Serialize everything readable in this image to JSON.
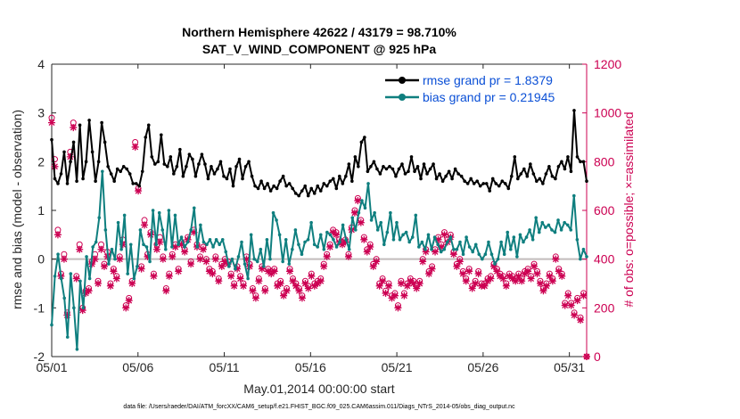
{
  "chart_data": {
    "type": "line",
    "title": "Northern Hemisphere 42622 / 43179 = 98.710%",
    "subtitle": "SAT_V_WIND_COMPONENT @ 925 hPa",
    "xlabel": "May.01,2014 00:00:00 start",
    "ylabel": "rmse and bias (model - observation)",
    "y2label": "# of obs: o=possible; ×=assimilated",
    "xlim": [
      0,
      31
    ],
    "ylim": [
      -2,
      4
    ],
    "y2lim": [
      0,
      1200
    ],
    "x_ticks": [
      0,
      5,
      10,
      15,
      20,
      25,
      30
    ],
    "x_tick_labels": [
      "05/01",
      "05/06",
      "05/11",
      "05/16",
      "05/21",
      "05/26",
      "05/31"
    ],
    "y_ticks": [
      -2,
      -1,
      0,
      1,
      2,
      3,
      4
    ],
    "y_tick_labels": [
      "-2",
      "-1",
      "0",
      "1",
      "2",
      "3",
      "4"
    ],
    "y2_ticks": [
      0,
      200,
      400,
      600,
      800,
      1000,
      1200
    ],
    "y2_tick_labels": [
      "0",
      "200",
      "400",
      "600",
      "800",
      "1000",
      "1200"
    ],
    "legend_position": "top-right",
    "footnote": "data file: /Users/raeder/DAI/ATM_forcXX/CAM6_setup/f.e21.FHIST_BGC.f09_025.CAM6assim.011/Diags_NTrS_2014-05/obs_diag_output.nc",
    "series": [
      {
        "name": "rmse grand pr = 1.8379",
        "color": "#000000",
        "axis": "left",
        "values": [
          2.45,
          1.65,
          1.55,
          1.75,
          2.2,
          1.55,
          2.0,
          2.4,
          1.6,
          2.75,
          1.65,
          2.0,
          2.85,
          2.2,
          1.6,
          2.0,
          2.8,
          2.4,
          1.9,
          1.75,
          1.6,
          1.85,
          1.8,
          1.9,
          1.85,
          1.75,
          1.55,
          1.55,
          1.5,
          1.8,
          2.5,
          2.75,
          2.1,
          1.95,
          2.0,
          2.55,
          1.95,
          1.9,
          2.1,
          1.75,
          1.9,
          2.25,
          1.7,
          1.9,
          2.15,
          2.05,
          1.7,
          1.95,
          2.15,
          1.95,
          1.65,
          1.9,
          1.75,
          1.85,
          2.0,
          1.7,
          1.65,
          1.85,
          1.5,
          1.9,
          2.05,
          1.65,
          1.9,
          2.0,
          1.7,
          1.5,
          1.45,
          1.6,
          1.45,
          1.55,
          1.4,
          1.5,
          1.45,
          1.6,
          1.7,
          1.5,
          1.55,
          1.45,
          1.35,
          1.3,
          1.4,
          1.5,
          1.3,
          1.45,
          1.35,
          1.5,
          1.4,
          1.55,
          1.5,
          1.6,
          1.65,
          1.45,
          1.7,
          1.55,
          1.7,
          1.95,
          1.6,
          2.1,
          1.9,
          2.4,
          2.5,
          1.8,
          1.9,
          2.0,
          1.85,
          1.75,
          1.9,
          1.85,
          1.9,
          1.85,
          1.7,
          1.85,
          1.95,
          1.75,
          1.8,
          2.1,
          1.8,
          1.9,
          1.65,
          1.95,
          1.75,
          1.85,
          1.95,
          1.65,
          1.75,
          1.6,
          1.7,
          1.8,
          1.65,
          1.85,
          1.75,
          1.7,
          1.6,
          1.55,
          1.65,
          1.55,
          1.6,
          1.5,
          1.55,
          1.55,
          1.4,
          1.65,
          1.55,
          1.5,
          1.6,
          1.55,
          1.45,
          1.7,
          2.1,
          1.65,
          1.75,
          1.85,
          1.7,
          1.95,
          1.75,
          1.6,
          1.65,
          1.55,
          1.75,
          1.9,
          1.7,
          1.65,
          1.9,
          2.0,
          1.85,
          2.1,
          1.8,
          3.05,
          2.1,
          2.0,
          2.0,
          1.6
        ]
      },
      {
        "name": "bias grand pr = 0.21945",
        "color": "#0f7f7f",
        "axis": "left",
        "values": [
          -1.35,
          -0.35,
          0.1,
          -0.4,
          -0.8,
          -1.6,
          -0.3,
          -1.0,
          -1.85,
          -0.45,
          -1.0,
          0.05,
          -0.4,
          0.25,
          0.35,
          0.85,
          1.8,
          0.6,
          -0.1,
          0.2,
          0.0,
          0.75,
          0.2,
          0.9,
          -0.3,
          0.3,
          -0.4,
          -0.15,
          0.6,
          0.3,
          0.25,
          -0.05,
          1.0,
          0.3,
          0.95,
          0.6,
          0.2,
          1.0,
          0.25,
          0.9,
          0.3,
          0.45,
          0.25,
          0.35,
          0.6,
          1.05,
          0.25,
          0.7,
          0.35,
          0.3,
          0.4,
          0.25,
          0.4,
          0.3,
          0.4,
          0.15,
          -0.15,
          0.0,
          -0.2,
          0.05,
          0.35,
          -0.1,
          -0.4,
          0.5,
          0.0,
          -0.05,
          0.2,
          -0.15,
          0.4,
          0.0,
          0.95,
          0.8,
          0.5,
          -0.05,
          0.4,
          -0.1,
          0.2,
          0.6,
          0.3,
          0.1,
          0.35,
          0.4,
          0.75,
          0.3,
          0.25,
          0.5,
          0.2,
          0.55,
          0.5,
          0.4,
          0.25,
          0.35,
          0.7,
          0.4,
          0.2,
          0.85,
          0.6,
          0.95,
          1.2,
          1.05,
          1.55,
          0.8,
          0.95,
          0.6,
          0.75,
          0.3,
          0.55,
          0.95,
          0.4,
          0.75,
          0.4,
          0.5,
          0.55,
          0.35,
          0.45,
          0.9,
          0.25,
          0.35,
          0.2,
          0.5,
          0.2,
          0.45,
          0.3,
          0.15,
          0.2,
          0.35,
          0.45,
          0.2,
          0.2,
          0.35,
          0.1,
          0.45,
          0.25,
          0.15,
          0.3,
          0.1,
          0.0,
          0.1,
          0.35,
          0.1,
          -0.1,
          0.0,
          0.35,
          0.1,
          0.55,
          0.2,
          0.45,
          0.05,
          0.5,
          0.35,
          0.45,
          0.6,
          0.4,
          0.85,
          0.55,
          0.75,
          0.65,
          0.7,
          0.6,
          0.55,
          0.8,
          0.6,
          0.75,
          0.7,
          0.6,
          1.3,
          0.4,
          0.0,
          0.2,
          0.05
        ]
      },
      {
        "name": "possible",
        "marker": "o",
        "color": "#cc0052",
        "axis": "right",
        "values": [
          980,
          810,
          520,
          340,
          420,
          180,
          840,
          960,
          330,
          460,
          200,
          270,
          280,
          390,
          420,
          310,
          460,
          380,
          430,
          300,
          360,
          330,
          410,
          480,
          210,
          240,
          310,
          880,
          690,
          370,
          560,
          420,
          510,
          340,
          460,
          490,
          410,
          280,
          340,
          420,
          460,
          360,
          470,
          440,
          490,
          390,
          520,
          460,
          410,
          450,
          400,
          360,
          350,
          410,
          320,
          380,
          400,
          390,
          340,
          300,
          370,
          330,
          300,
          410,
          380,
          280,
          250,
          320,
          370,
          280,
          360,
          350,
          360,
          300,
          310,
          260,
          280,
          360,
          320,
          300,
          280,
          250,
          310,
          290,
          340,
          300,
          310,
          320,
          380,
          420,
          460,
          520,
          510,
          480,
          470,
          480,
          420,
          530,
          600,
          650,
          560,
          490,
          440,
          460,
          380,
          400,
          300,
          320,
          270,
          300,
          250,
          260,
          210,
          310,
          260,
          300,
          320,
          310,
          290,
          310,
          400,
          440,
          350,
          370,
          440,
          490,
          460,
          510,
          480,
          500,
          430,
          380,
          400,
          350,
          320,
          360,
          290,
          310,
          350,
          300,
          300,
          320,
          330,
          380,
          360,
          340,
          330,
          300,
          340,
          330,
          320,
          340,
          320,
          350,
          360,
          330,
          380,
          350,
          310,
          280,
          300,
          340,
          320,
          410,
          360,
          340,
          220,
          260,
          220,
          180,
          240,
          160,
          260,
          0
        ]
      },
      {
        "name": "assimilated",
        "marker": "x",
        "color": "#cc0052",
        "axis": "right",
        "values": [
          960,
          780,
          500,
          330,
          400,
          170,
          820,
          940,
          320,
          440,
          190,
          260,
          270,
          380,
          400,
          300,
          440,
          370,
          410,
          290,
          350,
          320,
          400,
          460,
          200,
          230,
          300,
          860,
          680,
          360,
          540,
          410,
          500,
          330,
          440,
          470,
          400,
          270,
          330,
          410,
          450,
          350,
          460,
          430,
          480,
          380,
          510,
          450,
          400,
          440,
          390,
          350,
          340,
          400,
          310,
          370,
          390,
          380,
          330,
          290,
          360,
          320,
          290,
          400,
          370,
          270,
          240,
          310,
          360,
          270,
          350,
          340,
          350,
          290,
          300,
          250,
          270,
          350,
          310,
          290,
          270,
          240,
          300,
          280,
          330,
          290,
          300,
          310,
          370,
          410,
          450,
          510,
          500,
          470,
          460,
          470,
          410,
          520,
          590,
          640,
          550,
          480,
          430,
          450,
          370,
          390,
          290,
          310,
          260,
          290,
          240,
          250,
          200,
          300,
          250,
          290,
          310,
          300,
          280,
          300,
          390,
          430,
          340,
          360,
          430,
          480,
          450,
          500,
          470,
          490,
          420,
          370,
          390,
          340,
          310,
          350,
          280,
          300,
          340,
          290,
          290,
          310,
          320,
          370,
          350,
          330,
          320,
          290,
          330,
          320,
          310,
          330,
          310,
          340,
          350,
          320,
          370,
          340,
          300,
          270,
          290,
          330,
          310,
          400,
          350,
          330,
          210,
          250,
          210,
          170,
          230,
          150,
          250,
          0
        ]
      }
    ]
  }
}
